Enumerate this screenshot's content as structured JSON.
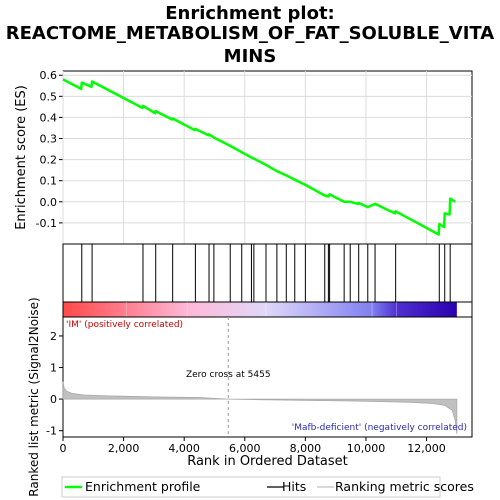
{
  "chart_data": {
    "type": "line",
    "title_lines": [
      "Enrichment plot:",
      "REACTOME_METABOLISM_OF_FAT_SOLUBLE_VITA",
      "MINS"
    ],
    "es_panel": {
      "ylabel": "Enrichment score (ES)",
      "ylim": [
        -0.2,
        0.62
      ],
      "yticks": [
        -0.1,
        0.0,
        0.1,
        0.2,
        0.3,
        0.4,
        0.5,
        0.6
      ],
      "ytick_labels": [
        "-0.1",
        "0.0",
        "0.1",
        "0.2",
        "0.3",
        "0.4",
        "0.5",
        "0.6"
      ],
      "grid": true,
      "line_color": "#00ff00",
      "series": [
        {
          "name": "Enrichment profile",
          "points": [
            [
              0,
              0.58
            ],
            [
              600,
              0.535
            ],
            [
              620,
              0.565
            ],
            [
              940,
              0.545
            ],
            [
              960,
              0.57
            ],
            [
              2620,
              0.445
            ],
            [
              2640,
              0.455
            ],
            [
              3040,
              0.42
            ],
            [
              3060,
              0.43
            ],
            [
              3600,
              0.39
            ],
            [
              3620,
              0.395
            ],
            [
              4350,
              0.34
            ],
            [
              4370,
              0.345
            ],
            [
              4800,
              0.315
            ],
            [
              4820,
              0.32
            ],
            [
              4980,
              0.305
            ],
            [
              5520,
              0.265
            ],
            [
              5900,
              0.235
            ],
            [
              6220,
              0.21
            ],
            [
              6300,
              0.205
            ],
            [
              6700,
              0.175
            ],
            [
              7060,
              0.145
            ],
            [
              7370,
              0.125
            ],
            [
              7650,
              0.105
            ],
            [
              8000,
              0.08
            ],
            [
              8640,
              0.03
            ],
            [
              8760,
              0.025
            ],
            [
              8800,
              0.035
            ],
            [
              9280,
              0.0
            ],
            [
              9480,
              0.0
            ],
            [
              9740,
              -0.01
            ],
            [
              9760,
              -0.005
            ],
            [
              10060,
              -0.025
            ],
            [
              10300,
              -0.01
            ],
            [
              10960,
              -0.055
            ],
            [
              10980,
              -0.045
            ],
            [
              12400,
              -0.155
            ],
            [
              12420,
              -0.105
            ],
            [
              12580,
              -0.12
            ],
            [
              12600,
              -0.055
            ],
            [
              12760,
              -0.06
            ],
            [
              12780,
              0.015
            ],
            [
              12950,
              0.0
            ]
          ]
        }
      ]
    },
    "hits": {
      "name": "Hits",
      "positions": [
        620,
        960,
        2640,
        3060,
        3620,
        4370,
        4820,
        4980,
        5520,
        5900,
        6220,
        6300,
        6700,
        7060,
        7370,
        7650,
        8000,
        8640,
        8760,
        8800,
        9280,
        9480,
        9760,
        10060,
        10300,
        10980,
        12420,
        12600,
        12780
      ]
    },
    "color_bar": {
      "stops": [
        [
          0,
          "#ff4a4a"
        ],
        [
          2100,
          "#ff8090"
        ],
        [
          4100,
          "#ffb8d8"
        ],
        [
          6700,
          "#e0d8f8"
        ],
        [
          10200,
          "#8080f0"
        ],
        [
          11000,
          "#5030d0"
        ],
        [
          13000,
          "#2a00b0"
        ]
      ],
      "left_label": "'IM' (positively correlated)",
      "right_label": "'Mafb-deficient' (negatively correlated)"
    },
    "metric_panel": {
      "ylabel": "Ranked list metric (Signal2Noise)",
      "ylim": [
        -1.2,
        2.6
      ],
      "yticks": [
        -1,
        0,
        1,
        2
      ],
      "ytick_labels": [
        "-1",
        "0",
        "1",
        "2"
      ],
      "fill_color": "#c0c0c0",
      "series": [
        {
          "name": "Ranking metric scores",
          "points": [
            [
              0,
              0.55
            ],
            [
              40,
              0.35
            ],
            [
              120,
              0.25
            ],
            [
              300,
              0.18
            ],
            [
              700,
              0.13
            ],
            [
              1500,
              0.1
            ],
            [
              3000,
              0.07
            ],
            [
              4500,
              0.05
            ],
            [
              5455,
              0.0
            ],
            [
              6500,
              -0.02
            ],
            [
              8000,
              -0.04
            ],
            [
              9500,
              -0.06
            ],
            [
              10500,
              -0.08
            ],
            [
              11500,
              -0.1
            ],
            [
              12200,
              -0.14
            ],
            [
              12600,
              -0.2
            ],
            [
              12850,
              -0.35
            ],
            [
              12950,
              -0.7
            ],
            [
              13000,
              -1.1
            ]
          ]
        }
      ],
      "zero_cross_label": "Zero cross at 5455",
      "zero_cross_x": 5455
    },
    "xaxis": {
      "xlabel": "Rank in Ordered Dataset",
      "xlim": [
        0,
        13500
      ],
      "xticks": [
        0,
        2000,
        4000,
        6000,
        8000,
        10000,
        12000
      ],
      "xtick_labels": [
        "0",
        "2,000",
        "4,000",
        "6,000",
        "8,000",
        "10,000",
        "12,000"
      ]
    },
    "legend": {
      "placement": "bottom",
      "entries": [
        {
          "label": "Enrichment profile",
          "color": "#00ff00"
        },
        {
          "label": "Hits",
          "color": "#000000"
        },
        {
          "label": "Ranking metric scores",
          "color": "#c0c0c0"
        }
      ]
    }
  }
}
